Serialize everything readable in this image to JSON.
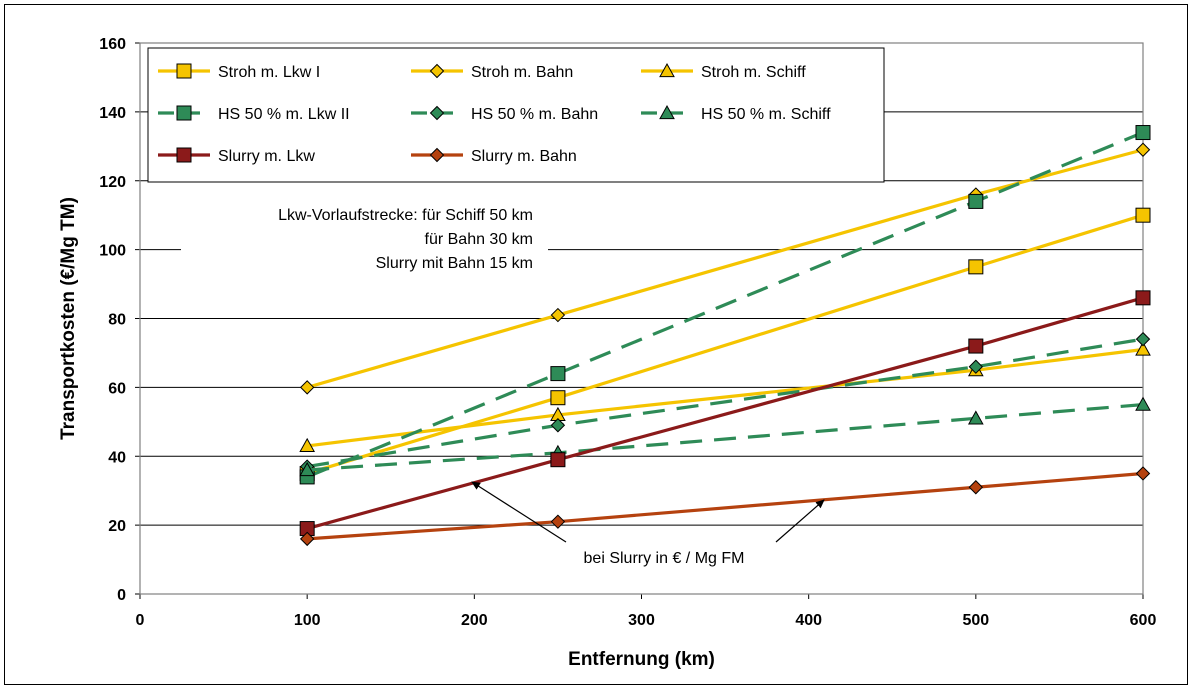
{
  "chart_data": {
    "type": "line",
    "title": "",
    "xlabel": "Entfernung (km)",
    "ylabel": "Transportkosten (€/Mg TM)",
    "xlim": [
      0,
      600
    ],
    "ylim": [
      0,
      160
    ],
    "xticks": [
      0,
      100,
      200,
      300,
      400,
      500,
      600
    ],
    "yticks": [
      0,
      20,
      40,
      60,
      80,
      100,
      120,
      140,
      160
    ],
    "grid": "horizontal",
    "legend_position": "top-left",
    "series": [
      {
        "name": "Stroh m. Lkw I",
        "x": [
          100,
          250,
          500,
          600
        ],
        "y": [
          35,
          57,
          95,
          110
        ],
        "color": "#f5c400",
        "marker": "square",
        "dash": false
      },
      {
        "name": "Stroh m. Bahn",
        "x": [
          100,
          250,
          500,
          600
        ],
        "y": [
          60,
          81,
          116,
          129
        ],
        "color": "#f5c400",
        "marker": "diamond",
        "dash": false
      },
      {
        "name": "Stroh m. Schiff",
        "x": [
          100,
          250,
          500,
          600
        ],
        "y": [
          43,
          52,
          65,
          71
        ],
        "color": "#f5c400",
        "marker": "triangle",
        "dash": false
      },
      {
        "name": "HS 50 % m. Lkw II",
        "x": [
          100,
          250,
          500,
          600
        ],
        "y": [
          34,
          64,
          114,
          134
        ],
        "color": "#2e8b57",
        "marker": "square",
        "dash": true
      },
      {
        "name": "HS 50 % m. Bahn",
        "x": [
          100,
          250,
          500,
          600
        ],
        "y": [
          37,
          49,
          66,
          74
        ],
        "color": "#2e8b57",
        "marker": "diamond",
        "dash": true
      },
      {
        "name": "HS 50 % m. Schiff",
        "x": [
          100,
          250,
          500,
          600
        ],
        "y": [
          36,
          41,
          51,
          55
        ],
        "color": "#2e8b57",
        "marker": "triangle",
        "dash": true
      },
      {
        "name": "Slurry m. Lkw",
        "x": [
          100,
          250,
          500,
          600
        ],
        "y": [
          19,
          39,
          72,
          86
        ],
        "color": "#8b1a1a",
        "marker": "square",
        "dash": false
      },
      {
        "name": "Slurry m. Bahn",
        "x": [
          100,
          250,
          500,
          600
        ],
        "y": [
          16,
          21,
          31,
          35
        ],
        "color": "#b5420f",
        "marker": "diamond",
        "dash": false
      }
    ],
    "annotations": {
      "note_lines": [
        "Lkw-Vorlaufstrecke: für Schiff 50 km",
        "für Bahn 30 km",
        "Slurry mit Bahn 15 km"
      ],
      "arrow_label": "bei Slurry in € / Mg FM"
    }
  }
}
